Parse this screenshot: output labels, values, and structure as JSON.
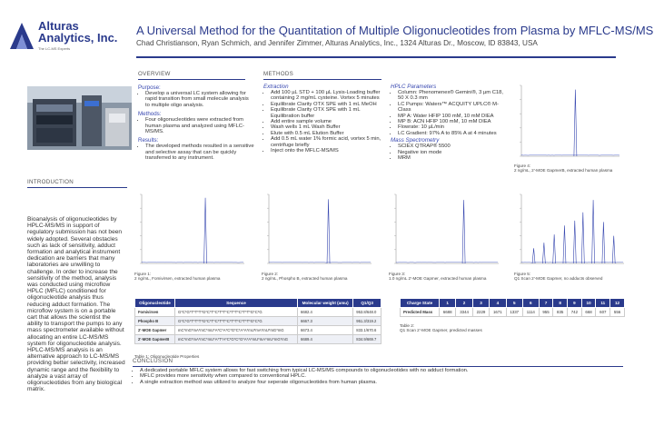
{
  "brand": {
    "name_line1": "Alturas",
    "name_line2": "Analytics, Inc.",
    "tagline": "The LC-MS Experts",
    "color": "#2a3a8c"
  },
  "header": {
    "title": "A Universal Method for the Quantitation of Multiple Oligonucleotides from Plasma by MFLC-MS/MS",
    "authors": "Chad Christianson, Ryan Schmich, and Jennifer Zimmer, Alturas Analytics, Inc., 1324 Alturas Dr., Moscow, ID 83843, USA"
  },
  "introduction": {
    "heading": "INTRODUCTION",
    "text": "Bioanalysis of oligonucleotides by HPLC-MS/MS in support of regulatory submission has not been widely adopted. Several obstacles such as lack of sensitivity, adduct formation and analytical instrument dedication are barriers that many laboratories are unwilling to challenge. In order to increase the sensitivity of the method, analysis was conducted using microflow HPLC (MFLC) conditioned for oligonucleotide analysis thus reducing adduct formation. The microflow system is on a portable cart that allows the scientist the ability to transport the pumps to any mass spectrometer available without allocating an entire LC-MS/MS system for oligonucleotide analysis. HPLC-MS/MS analysis is an alternative approach to LC-MS/MS providing better selectivity, increased dynamic range and the flexibility to analyze a vast array of oligonucleotides from any biological matrix."
  },
  "overview": {
    "heading": "OVERVIEW",
    "purpose_label": "Purpose:",
    "purpose": "Develop a universal LC system allowing for rapid transition from small molecule analysis to multiple oligo analysis.",
    "methods_label": "Methods:",
    "methods": "Four oligonucleotides were extracted from human plasma and analyzed using MFLC-MS/MS.",
    "results_label": "Results:",
    "results": "The developed methods resulted in a sensitive and selective assay that can be quickly transferred to any instrument."
  },
  "methods": {
    "heading": "METHODS",
    "extraction_label": "Extraction",
    "extraction": [
      "Add 100 µL STD + 100 µL Lysis-Loading buffer containing 2 mg/mL cysteine. Vortex 5 minutes",
      "Equilibrate Clarity OTX SPE with 1 mL MeOH",
      "Equilibrate Clarity OTX SPE with 1 mL Equilibration buffer",
      "Add entire sample volume",
      "Wash wells 1 mL Wash Buffer",
      "Elute with 0.5 mL Elution Buffer",
      "Add 0.5 mL water 1% formic acid, vortex 5 min, centrifuge briefly",
      "Inject onto the MFLC-MS/MS"
    ],
    "hplc_label": "HPLC Parameters",
    "hplc": [
      "Column: Phenomenex® Gemini®, 3 µm C18, 50 X 0.3 mm",
      "LC Pumps: Waters™ ACQUITY UPLC® M-Class",
      "MP A: Water HFIP 100 mM, 10 mM DIEA",
      "MP B: ACN HFIP 100 mM, 10 mM DIEA",
      "Flowrate: 10 µL/min",
      "LC Gradient: 97% A to 85% A at 4 minutes"
    ],
    "ms_label": "Mass Spectrometry",
    "ms": [
      "SCIEX QTRAP® 5500",
      "Negative ion mode",
      "MRM"
    ]
  },
  "figures": {
    "fig1": {
      "caption": "Figure 1:\n2 ng/mL, Fomivirsen, extracted human plasma",
      "peaks": [
        [
          0.62,
          0.95
        ]
      ]
    },
    "fig2": {
      "caption": "Figure 2:\n2 ng/mL, Phospho B, extracted human plasma",
      "peaks": [
        [
          0.58,
          0.93
        ]
      ]
    },
    "fig3": {
      "caption": "Figure 3:\n1.0 ng/mL 2'-MOE Gapmer, extracted human plasma",
      "peaks": [
        [
          0.66,
          0.92
        ]
      ]
    },
    "fig4": {
      "caption": "Figure 4:\n2 ng/mL, 2'-MOE GapmerB, extracted human plasma",
      "peaks": [
        [
          0.55,
          0.94
        ]
      ]
    },
    "fig5": {
      "caption": "Figure 5:\nQ1 Scan 2'-MOE Gapmer, no adducts observed",
      "peaks": [
        [
          0.12,
          0.22
        ],
        [
          0.22,
          0.3
        ],
        [
          0.32,
          0.42
        ],
        [
          0.42,
          0.55
        ],
        [
          0.52,
          0.62
        ],
        [
          0.6,
          0.74
        ],
        [
          0.7,
          0.92
        ],
        [
          0.8,
          0.6
        ],
        [
          0.9,
          0.4
        ]
      ]
    }
  },
  "table1": {
    "caption": "Table 1:  Oligonucleotide Properties",
    "headers": [
      "Oligonucleotide",
      "Sequence",
      "Molecular weight (amu)",
      "Q1/Q3"
    ],
    "rows": [
      [
        "Fomivirsen",
        "G*C*G*T*T*T*G*C*T*C*T*T*C*T*T*C*T*T*G*C*G",
        "6682.4",
        "953.8/648.0"
      ],
      [
        "Phospho B",
        "G*C*G*T*T*T*G*C*T*C*T*T*C*T*T*C*T*T*G*C*G",
        "6667.3",
        "951.3/319.2"
      ],
      [
        "2'-MOE Gapmer",
        "mC*mG*mA*mC*mU*A*C*A*C*G*C*A*A*mU*mA*mU*mG*mG",
        "6673.4",
        "833.1/670.6"
      ],
      [
        "2'-MOE GapmerB",
        "mC*mG*mA*mC*mU*A*T*A*C*G*C*G*A*A*mU*mA*mU*mG*mG",
        "6689.4",
        "834.9/669.7"
      ]
    ]
  },
  "table2": {
    "caption": "Table 2:\nQ1 Scan 2'-MOE Gapmer, predicted masses",
    "headers": [
      "Charge State",
      "1",
      "2",
      "3",
      "4",
      "5",
      "6",
      "7",
      "8",
      "9",
      "10",
      "11",
      "12"
    ],
    "row_label": "Predicted Mass",
    "values": [
      "6688",
      "3344",
      "2229",
      "1671",
      "1337",
      "1114",
      "955",
      "835",
      "742",
      "668",
      "607",
      "556"
    ]
  },
  "conclusion": {
    "heading": "CONCLUSION",
    "items": [
      "A dedicated portable MFLC system allows for fast switching from typical LC-MS/MS compounds to oligonucleotides with no adduct formation.",
      "MFLC provides more sensitivity when compared to conventional HPLC.",
      "A single extraction method was utilized to analyze four seperate oligonucleotides from human plasma."
    ]
  }
}
